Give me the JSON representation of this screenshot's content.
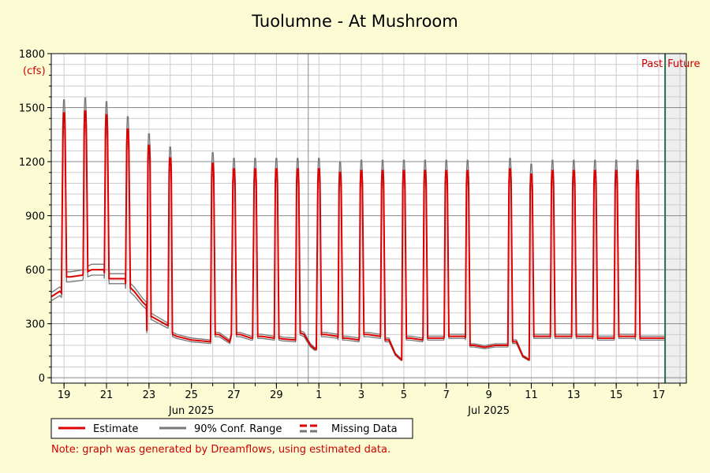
{
  "chart_data": {
    "type": "line",
    "title": "Tuolumne - At Mushroom",
    "yunit": "(cfs)",
    "ylim": [
      -30,
      1800
    ],
    "yticks": [
      0,
      300,
      600,
      900,
      1200,
      1500,
      1800
    ],
    "xlim": [
      -0.6,
      29.3
    ],
    "now_day": 28.3,
    "x_ticks": [
      {
        "day": 0,
        "label": "19"
      },
      {
        "day": 2,
        "label": "21"
      },
      {
        "day": 4,
        "label": "23"
      },
      {
        "day": 6,
        "label": "25"
      },
      {
        "day": 8,
        "label": "27"
      },
      {
        "day": 10,
        "label": "29"
      },
      {
        "day": 12,
        "label": "1"
      },
      {
        "day": 14,
        "label": "3"
      },
      {
        "day": 16,
        "label": "5"
      },
      {
        "day": 18,
        "label": "7"
      },
      {
        "day": 20,
        "label": "9"
      },
      {
        "day": 22,
        "label": "11"
      },
      {
        "day": 24,
        "label": "13"
      },
      {
        "day": 26,
        "label": "15"
      },
      {
        "day": 28,
        "label": "17"
      }
    ],
    "month_labels": [
      {
        "day": 6,
        "label": "Jun 2025"
      },
      {
        "day": 20,
        "label": "Jul 2025"
      }
    ],
    "month_divider_day": 11.5,
    "region_labels": {
      "past": "Past",
      "future": "Future"
    },
    "series": [
      {
        "name": "Estimate",
        "color": "#dd0000"
      },
      {
        "name": "90% Conf. Range",
        "color": "#777777"
      },
      {
        "name": "Missing Data",
        "color": "#dd0000"
      }
    ],
    "pulses": [
      {
        "day": 0,
        "peak": 1470,
        "base_before": 470,
        "base_after": 560
      },
      {
        "day": 1,
        "peak": 1480,
        "base_before": 570,
        "base_after": 590
      },
      {
        "day": 2,
        "peak": 1460,
        "base_before": 600,
        "base_after": 550
      },
      {
        "day": 3,
        "peak": 1380,
        "base_before": 550,
        "base_after": 500
      },
      {
        "day": 4,
        "peak": 1290,
        "base_before": 400,
        "base_after": 340
      },
      {
        "day": 5,
        "peak": 1220,
        "base_before": 290,
        "base_after": 240
      },
      {
        "day": 7,
        "peak": 1190,
        "base_before": 200,
        "base_after": 240
      },
      {
        "day": 8,
        "peak": 1160,
        "base_before": 240,
        "base_after": 240
      },
      {
        "day": 9,
        "peak": 1160,
        "base_before": 220,
        "base_after": 230
      },
      {
        "day": 10,
        "peak": 1160,
        "base_before": 220,
        "base_after": 220
      },
      {
        "day": 11,
        "peak": 1160,
        "base_before": 210,
        "base_after": 250
      },
      {
        "day": 12,
        "peak": 1160,
        "base_before": 160,
        "base_after": 240
      },
      {
        "day": 13,
        "peak": 1140,
        "base_before": 230,
        "base_after": 220
      },
      {
        "day": 14,
        "peak": 1150,
        "base_before": 210,
        "base_after": 240
      },
      {
        "day": 15,
        "peak": 1150,
        "base_before": 230,
        "base_after": 210
      },
      {
        "day": 16,
        "peak": 1150,
        "base_before": 100,
        "base_after": 220
      },
      {
        "day": 17,
        "peak": 1150,
        "base_before": 210,
        "base_after": 220
      },
      {
        "day": 18,
        "peak": 1150,
        "base_before": 220,
        "base_after": 230
      },
      {
        "day": 19,
        "peak": 1150,
        "base_before": 230,
        "base_after": 180
      },
      {
        "day": 21,
        "peak": 1160,
        "base_before": 180,
        "base_after": 200
      },
      {
        "day": 22,
        "peak": 1130,
        "base_before": 100,
        "base_after": 230
      },
      {
        "day": 23,
        "peak": 1150,
        "base_before": 230,
        "base_after": 230
      },
      {
        "day": 24,
        "peak": 1150,
        "base_before": 230,
        "base_after": 230
      },
      {
        "day": 25,
        "peak": 1150,
        "base_before": 230,
        "base_after": 220
      },
      {
        "day": 26,
        "peak": 1150,
        "base_before": 220,
        "base_after": 230
      },
      {
        "day": 27,
        "peak": 1150,
        "base_before": 230,
        "base_after": 220
      }
    ],
    "baseline": [
      [
        -0.6,
        450
      ],
      [
        -0.2,
        480
      ],
      [
        0.3,
        560
      ],
      [
        0.9,
        580
      ],
      [
        1.3,
        600
      ],
      [
        1.9,
        580
      ],
      [
        2.3,
        550
      ],
      [
        2.9,
        520
      ],
      [
        3.3,
        480
      ],
      [
        3.7,
        420
      ],
      [
        3.9,
        260
      ],
      [
        4.1,
        340
      ],
      [
        4.9,
        290
      ],
      [
        5.1,
        250
      ],
      [
        5.3,
        230
      ],
      [
        6.0,
        210
      ],
      [
        6.9,
        200
      ],
      [
        7.3,
        240
      ],
      [
        7.8,
        200
      ],
      [
        8.3,
        240
      ],
      [
        8.8,
        220
      ],
      [
        9.3,
        230
      ],
      [
        9.9,
        220
      ],
      [
        10.3,
        215
      ],
      [
        10.9,
        210
      ],
      [
        11.3,
        240
      ],
      [
        11.6,
        180
      ],
      [
        11.8,
        160
      ],
      [
        12.3,
        240
      ],
      [
        12.9,
        220
      ],
      [
        13.3,
        220
      ],
      [
        13.9,
        220
      ],
      [
        14.3,
        240
      ],
      [
        14.9,
        230
      ],
      [
        15.3,
        210
      ],
      [
        15.6,
        130
      ],
      [
        15.9,
        100
      ],
      [
        16.3,
        220
      ],
      [
        16.9,
        220
      ],
      [
        17.3,
        220
      ],
      [
        17.9,
        230
      ],
      [
        18.3,
        230
      ],
      [
        18.9,
        220
      ],
      [
        19.3,
        180
      ],
      [
        19.8,
        170
      ],
      [
        20.3,
        180
      ],
      [
        20.9,
        180
      ],
      [
        21.3,
        200
      ],
      [
        21.6,
        120
      ],
      [
        21.9,
        100
      ],
      [
        22.3,
        230
      ],
      [
        22.9,
        230
      ],
      [
        23.3,
        230
      ],
      [
        23.9,
        230
      ],
      [
        24.3,
        230
      ],
      [
        24.9,
        225
      ],
      [
        25.3,
        220
      ],
      [
        25.9,
        220
      ],
      [
        26.3,
        230
      ],
      [
        26.9,
        225
      ],
      [
        27.3,
        220
      ],
      [
        27.9,
        220
      ],
      [
        28.3,
        220
      ]
    ]
  },
  "legend": {
    "estimate": "Estimate",
    "conf_range": "90% Conf. Range",
    "missing": "Missing Data"
  },
  "note": "Note: graph was generated by Dreamflows, using estimated data."
}
